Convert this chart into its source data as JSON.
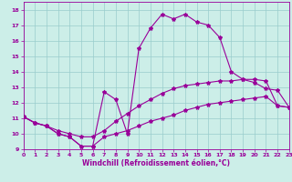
{
  "bg_color": "#cceee8",
  "line_color": "#990099",
  "grid_color": "#99cccc",
  "line1_x": [
    0,
    1,
    2,
    3,
    4,
    5,
    6,
    7,
    8,
    9,
    10,
    11,
    12,
    13,
    14,
    15,
    16,
    17,
    18,
    19,
    20,
    21,
    22,
    23
  ],
  "line1_y": [
    11.1,
    10.7,
    10.5,
    10.0,
    9.8,
    9.2,
    9.2,
    9.8,
    10.0,
    10.2,
    10.5,
    10.8,
    11.0,
    11.2,
    11.5,
    11.7,
    11.9,
    12.0,
    12.1,
    12.2,
    12.3,
    12.4,
    11.8,
    11.7
  ],
  "line2_x": [
    0,
    1,
    2,
    3,
    4,
    5,
    6,
    7,
    8,
    9,
    10,
    11,
    12,
    13,
    14,
    15,
    16,
    17,
    18,
    19,
    20,
    21,
    22,
    23
  ],
  "line2_y": [
    11.1,
    10.7,
    10.5,
    10.2,
    10.0,
    9.8,
    9.8,
    10.2,
    10.8,
    11.3,
    11.8,
    12.2,
    12.6,
    12.9,
    13.1,
    13.2,
    13.3,
    13.4,
    13.4,
    13.5,
    13.5,
    13.4,
    11.8,
    11.7
  ],
  "line3_x": [
    0,
    1,
    2,
    3,
    4,
    5,
    6,
    7,
    8,
    9,
    10,
    11,
    12,
    13,
    14,
    15,
    16,
    17,
    18,
    19,
    20,
    21,
    22,
    23
  ],
  "line3_y": [
    11.1,
    10.7,
    10.5,
    10.0,
    9.8,
    9.2,
    9.2,
    12.7,
    12.2,
    10.0,
    15.5,
    16.8,
    17.7,
    17.4,
    17.7,
    17.2,
    17.0,
    16.2,
    14.0,
    13.5,
    13.3,
    12.9,
    12.8,
    11.7
  ],
  "xlim": [
    0,
    23
  ],
  "ylim": [
    9.0,
    18.5
  ],
  "yticks": [
    9,
    10,
    11,
    12,
    13,
    14,
    15,
    16,
    17,
    18
  ],
  "xticks": [
    0,
    1,
    2,
    3,
    4,
    5,
    6,
    7,
    8,
    9,
    10,
    11,
    12,
    13,
    14,
    15,
    16,
    17,
    18,
    19,
    20,
    21,
    22,
    23
  ],
  "xlabel": "Windchill (Refroidissement éolien,°C)",
  "tick_fontsize": 4.5,
  "xlabel_fontsize": 5.5,
  "marker": "*",
  "markersize": 3,
  "linewidth": 0.8
}
